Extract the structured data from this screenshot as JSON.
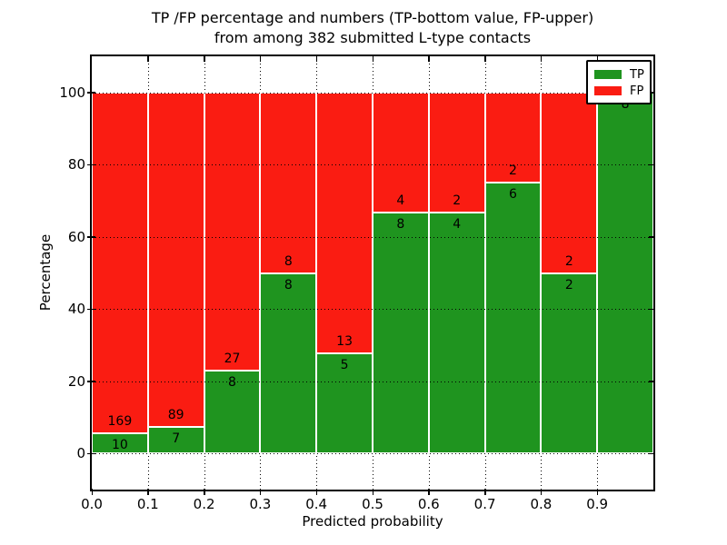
{
  "title": {
    "line1": "TP /FP percentage and numbers (TP-bottom value, FP-upper)",
    "line2": "from among 382 submitted L-type contacts"
  },
  "axes": {
    "x_label": "Predicted probability",
    "y_label": "Percentage",
    "x_tick_labels": [
      "0.0",
      "0.1",
      "0.2",
      "0.3",
      "0.4",
      "0.5",
      "0.6",
      "0.7",
      "0.8",
      "0.9"
    ],
    "y_tick_labels": [
      "0",
      "20",
      "40",
      "60",
      "80",
      "100"
    ]
  },
  "legend": {
    "position": "upper-right",
    "items": [
      {
        "label": "TP",
        "color": "#1f941f"
      },
      {
        "label": "FP",
        "color": "#fa1c12"
      }
    ]
  },
  "chart_data": {
    "type": "bar",
    "subtype": "stacked-percentage-histogram",
    "title": "TP /FP percentage and numbers (TP-bottom value, FP-upper) from among 382 submitted L-type contacts",
    "xlabel": "Predicted probability",
    "ylabel": "Percentage",
    "xlim": [
      0.0,
      1.0
    ],
    "ylim": [
      -10,
      110
    ],
    "x_ticks": [
      0.0,
      0.1,
      0.2,
      0.3,
      0.4,
      0.5,
      0.6,
      0.7,
      0.8,
      0.9
    ],
    "y_ticks": [
      0,
      20,
      40,
      60,
      80,
      100
    ],
    "bin_edges": [
      0.0,
      0.1,
      0.2,
      0.3,
      0.4,
      0.5,
      0.6,
      0.7,
      0.8,
      0.9,
      1.0
    ],
    "total_contacts": 382,
    "series": [
      {
        "name": "TP",
        "color": "#1f941f",
        "counts": [
          10,
          7,
          8,
          8,
          5,
          8,
          4,
          6,
          2,
          8
        ],
        "percent": [
          5.59,
          7.29,
          22.86,
          50.0,
          27.78,
          66.67,
          66.67,
          75.0,
          50.0,
          100.0
        ]
      },
      {
        "name": "FP",
        "color": "#fa1c12",
        "counts": [
          169,
          89,
          27,
          8,
          13,
          4,
          2,
          2,
          2,
          0
        ],
        "percent": [
          94.41,
          92.71,
          77.14,
          50.0,
          72.22,
          33.33,
          33.33,
          25.0,
          50.0,
          0.0
        ]
      }
    ],
    "bar_edge_color": "#ffffff",
    "grid": {
      "style": "dotted",
      "color": "#000000"
    },
    "legend_position": "upper right"
  }
}
